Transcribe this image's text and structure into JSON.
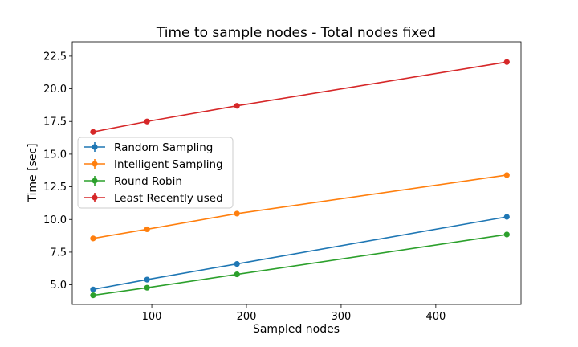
{
  "chart_data": {
    "type": "line",
    "title": "Time to sample nodes - Total nodes fixed",
    "xlabel": "Sampled nodes",
    "ylabel": "Time [sec]",
    "xlim": [
      16,
      490
    ],
    "ylim": [
      3.5,
      23.6
    ],
    "xticks": [
      100,
      200,
      300,
      400
    ],
    "yticks": [
      5.0,
      7.5,
      10.0,
      12.5,
      15.0,
      17.5,
      20.0,
      22.5
    ],
    "xtick_labels": [
      "100",
      "200",
      "300",
      "400"
    ],
    "ytick_labels": [
      "5.0",
      "7.5",
      "10.0",
      "12.5",
      "15.0",
      "17.5",
      "20.0",
      "22.5"
    ],
    "x": [
      38,
      95,
      190,
      475
    ],
    "legend_position": "center-left",
    "series": [
      {
        "name": "Random Sampling",
        "color": "#1f77b4",
        "values": [
          4.65,
          5.4,
          6.6,
          10.2
        ]
      },
      {
        "name": "Intelligent Sampling",
        "color": "#ff7f0e",
        "values": [
          8.55,
          9.25,
          10.45,
          13.4
        ]
      },
      {
        "name": "Round Robin",
        "color": "#2ca02c",
        "values": [
          4.2,
          4.78,
          5.8,
          8.85
        ]
      },
      {
        "name": "Least Recently used",
        "color": "#d62728",
        "values": [
          16.7,
          17.5,
          18.7,
          22.05
        ]
      }
    ]
  }
}
